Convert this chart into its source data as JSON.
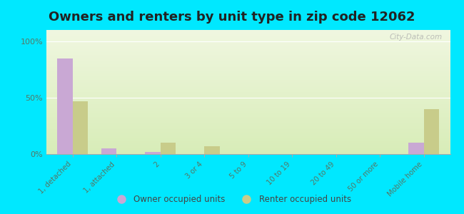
{
  "title": "Owners and renters by unit type in zip code 12062",
  "categories": [
    "1, detached",
    "1, attached",
    "2",
    "3 or 4",
    "5 to 9",
    "10 to 19",
    "20 to 49",
    "50 or more",
    "Mobile home"
  ],
  "owner_values": [
    85,
    5,
    2,
    0,
    0,
    0,
    0,
    0,
    10
  ],
  "renter_values": [
    47,
    0,
    10,
    7,
    0,
    0,
    0,
    0,
    40
  ],
  "owner_color": "#c9a8d4",
  "renter_color": "#c8cc8a",
  "background_color": "#00e8ff",
  "grad_top": "#f0f7e0",
  "grad_bottom": "#d8edb8",
  "ylabel_ticks": [
    "0%",
    "50%",
    "100%"
  ],
  "ytick_vals": [
    0,
    50,
    100
  ],
  "ylim": [
    0,
    110
  ],
  "watermark": "City-Data.com",
  "legend_owner": "Owner occupied units",
  "legend_renter": "Renter occupied units",
  "bar_width": 0.35,
  "title_fontsize": 13
}
